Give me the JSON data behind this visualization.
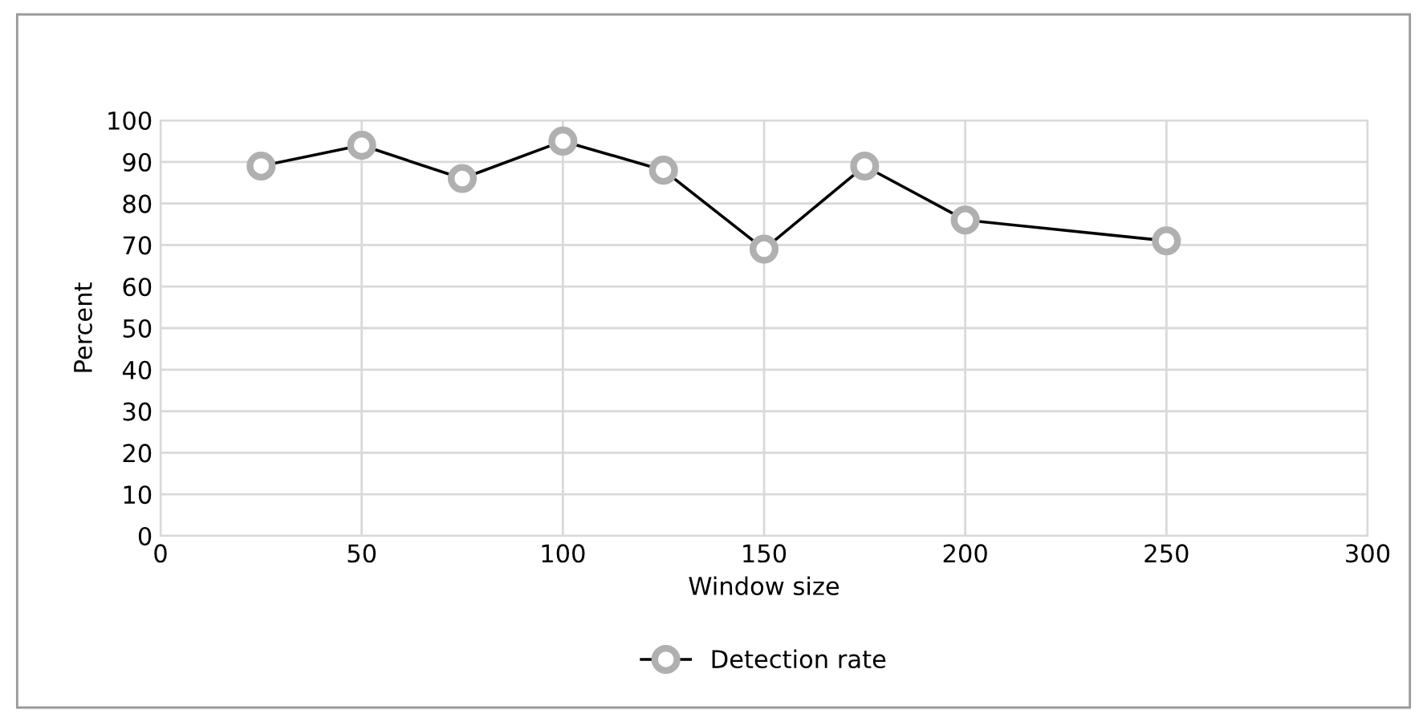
{
  "chart_data": {
    "type": "line",
    "xlabel": "Window size",
    "ylabel": "Percent",
    "x": [
      25,
      50,
      75,
      100,
      125,
      150,
      175,
      200,
      250
    ],
    "series": [
      {
        "name": "Detection rate",
        "color": "#000000",
        "values": [
          89,
          94,
          86,
          95,
          88,
          69,
          89,
          76,
          71
        ]
      }
    ],
    "xlim": [
      0,
      300
    ],
    "xticks": [
      0,
      50,
      100,
      150,
      200,
      250,
      300
    ],
    "ylim": [
      0,
      100
    ],
    "yticks": [
      0,
      10,
      20,
      30,
      40,
      50,
      60,
      70,
      80,
      90,
      100
    ],
    "grid": true,
    "legend": "bottom",
    "marker": "circle",
    "line_style": "solid"
  }
}
